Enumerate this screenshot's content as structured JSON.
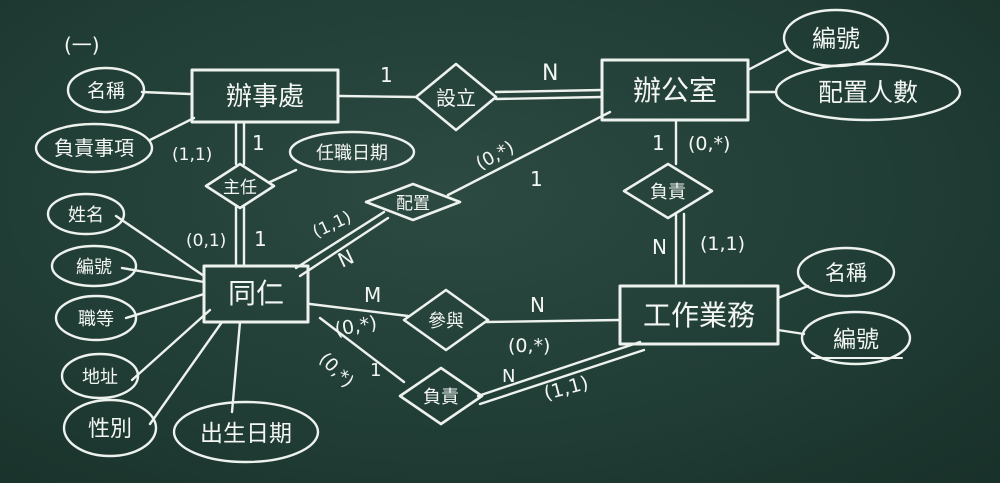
{
  "section_label": "(一)",
  "entities": {
    "office": "辦事處",
    "room": "辦公室",
    "staff": "同仁",
    "task": "工作業務"
  },
  "relationships": {
    "setup": "設立",
    "head": "主任",
    "assign": "配置",
    "participate": "參與",
    "staff_resp": "負責",
    "room_resp": "負責"
  },
  "attributes": {
    "office_name": "名稱",
    "office_duty": "負責事項",
    "room_no": "編號",
    "room_count": "配置人數",
    "staff_name": "姓名",
    "staff_no": "編號",
    "staff_rank": "職等",
    "staff_addr": "地址",
    "staff_sex": "性別",
    "staff_birth": "出生日期",
    "appoint_date": "任職日期",
    "task_name": "名稱",
    "task_no": "編號"
  },
  "cardinalities": {
    "setup_office": "1",
    "setup_room": "N",
    "head_office": "1",
    "head_office_pair": "(1,1)",
    "head_staff": "1",
    "head_staff_pair": "(0,1)",
    "assign_staff_pair": "(1,1)",
    "assign_staff": "N",
    "assign_room_pair": "(0,*)",
    "assign_room": "1",
    "roomresp_room": "1",
    "roomresp_room_pair": "(0,*)",
    "roomresp_task": "N",
    "roomresp_task_pair": "(1,1)",
    "part_staff": "M",
    "part_staff_pair": "(0,*)",
    "part_task": "N",
    "part_task_pair": "(0,*)",
    "resp_staff_pair": "(0,*)",
    "resp_staff": "1",
    "resp_task": "N",
    "resp_task_pair": "(1,1)"
  }
}
